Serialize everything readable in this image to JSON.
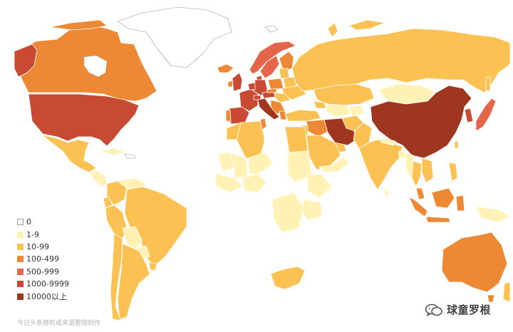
{
  "legend": {
    "items": [
      {
        "label": "0",
        "color": "#ffffff"
      },
      {
        "label": "1-9",
        "color": "#fff2b4"
      },
      {
        "label": "10-99",
        "color": "#fcc153"
      },
      {
        "label": "100-499",
        "color": "#ed8834"
      },
      {
        "label": "500-999",
        "color": "#e5654a"
      },
      {
        "label": "1000-9999",
        "color": "#c94a32"
      },
      {
        "label": "10000以上",
        "color": "#9e3620"
      }
    ]
  },
  "watermark": "今日头条擅权威来源整理制作",
  "brand": {
    "name": "球童罗根",
    "icon": "wechat-icon"
  }
}
